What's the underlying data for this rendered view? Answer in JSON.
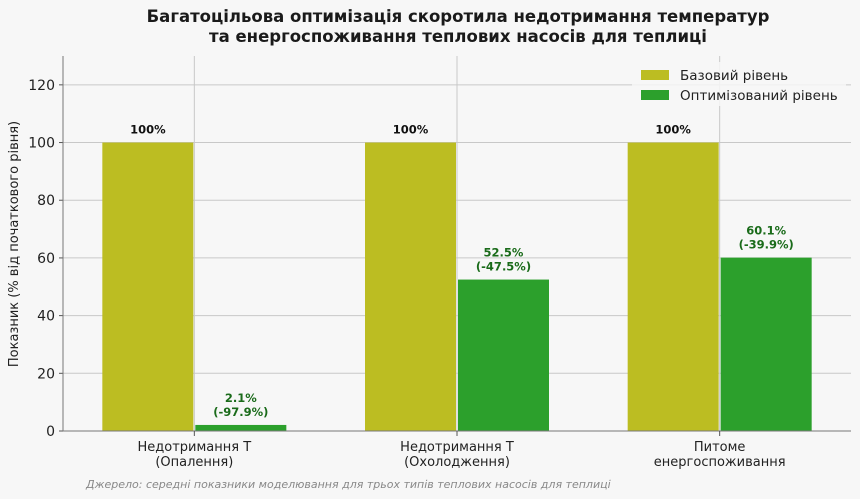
{
  "chart_data": {
    "type": "bar",
    "title_line1": "Багатоцільова оптимізація скоротила недотримання температур",
    "title_line2": "та енергоспоживання теплових насосів для теплиці",
    "ylabel": "Показник (% від початкового рівня)",
    "xlabel": "",
    "ylim": [
      0,
      130
    ],
    "yticks": [
      0,
      20,
      40,
      60,
      80,
      100,
      120
    ],
    "grid": true,
    "legend_position": "top-right",
    "categories": [
      [
        "Недотримання T",
        "(Опалення)"
      ],
      [
        "Недотримання T",
        "(Охолодження)"
      ],
      [
        "Питоме",
        "енергоспоживання"
      ]
    ],
    "series": [
      {
        "name": "Базовий рівень",
        "color": "#bcbd22",
        "label_color": "#111111",
        "values": [
          100,
          100,
          100
        ],
        "labels": [
          [
            "100%"
          ],
          [
            "100%"
          ],
          [
            "100%"
          ]
        ]
      },
      {
        "name": "Оптимізований рівень",
        "color": "#2ca02c",
        "label_color": "#1a6b1a",
        "values": [
          2.1,
          52.5,
          60.1
        ],
        "labels": [
          [
            "2.1%",
            "(-97.9%)"
          ],
          [
            "52.5%",
            "(-47.5%)"
          ],
          [
            "60.1%",
            "(-39.9%)"
          ]
        ]
      }
    ],
    "source_note": "Джерело: середні показники моделювання для трьох типів теплових насосів для теплиці"
  }
}
